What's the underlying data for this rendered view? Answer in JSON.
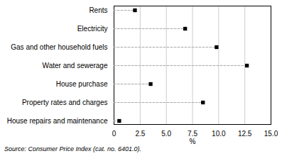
{
  "chart_data": {
    "type": "lollipop",
    "orientation": "horizontal",
    "categories": [
      "Rents",
      "Electricity",
      "Gas and other household fuels",
      "Water and sewerage",
      "House purchase",
      "Property rates and charges",
      "House repairs and maintenance"
    ],
    "values": [
      2.0,
      6.8,
      9.8,
      12.7,
      3.5,
      8.5,
      0.5
    ],
    "xlabel": "%",
    "xlim": [
      0,
      15.0
    ],
    "xticks": [
      0,
      2.5,
      {
        "value": 5.0,
        "label": "5.0"
      },
      7.5,
      {
        "value": 10.0,
        "label": "10.0"
      },
      12.5,
      {
        "value": 15.0,
        "label": "15.0"
      }
    ],
    "grid": true,
    "color": "#000000",
    "marker": "square",
    "line_style": "dashed",
    "annotations": [
      "Source: Consumer Price Index (cat. no. 6401.0)."
    ]
  }
}
